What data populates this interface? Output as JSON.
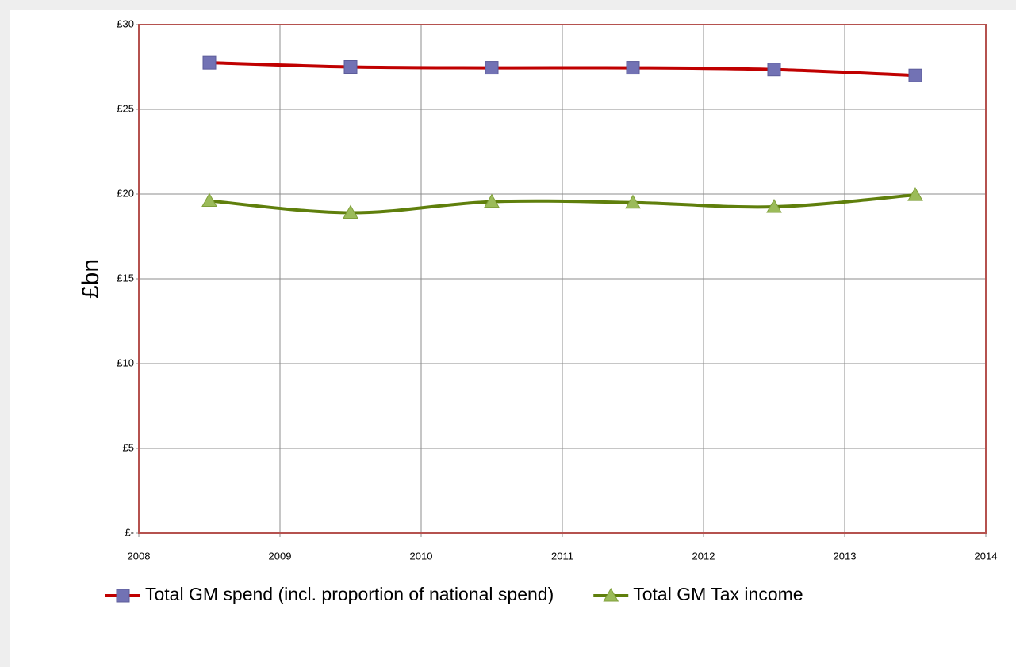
{
  "chart_data": {
    "type": "line",
    "y_label": "£bn",
    "x": [
      2008.5,
      2009.5,
      2010.5,
      2011.5,
      2012.5,
      2013.5
    ],
    "series": [
      {
        "name": "Total GM spend (incl. proportion of national spend)",
        "color": "#c00000",
        "marker": "square",
        "marker_color": "#7272b4",
        "values": [
          27.75,
          27.5,
          27.45,
          27.45,
          27.35,
          27.0
        ]
      },
      {
        "name": "Total GM Tax income",
        "color": "#5f7f0c",
        "marker": "triangle",
        "marker_color": "#9bbb59",
        "values": [
          19.6,
          18.9,
          19.55,
          19.5,
          19.25,
          19.95
        ]
      }
    ],
    "xlim": [
      2008,
      2014
    ],
    "xticks": [
      2008,
      2009,
      2010,
      2011,
      2012,
      2013,
      2014
    ],
    "ylim": [
      0,
      30
    ],
    "yticks": [
      {
        "value": 0,
        "label": "£-"
      },
      {
        "value": 5,
        "label": "£5"
      },
      {
        "value": 10,
        "label": "£10"
      },
      {
        "value": 15,
        "label": "£15"
      },
      {
        "value": 20,
        "label": "£20"
      },
      {
        "value": 25,
        "label": "£25"
      },
      {
        "value": 30,
        "label": "£30"
      }
    ],
    "grid": true,
    "smooth": true,
    "legend": "bottom"
  }
}
